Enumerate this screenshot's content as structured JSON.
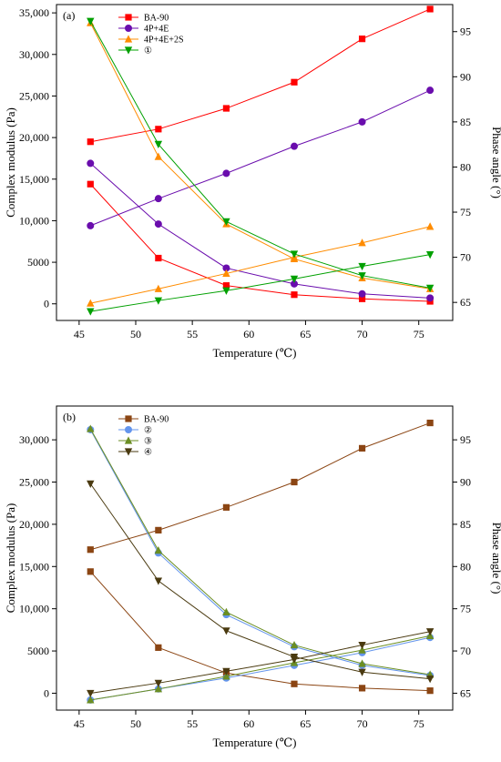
{
  "chart_data": [
    {
      "type": "line",
      "panel_label": "(a)",
      "xlabel": "Temperature (℃)",
      "ylabel": "Complex modulus (Pa)",
      "y2label": "Phase angle (°)",
      "xlim": [
        43,
        78
      ],
      "ylim": [
        -2000,
        36000
      ],
      "y2lim": [
        63,
        98
      ],
      "xticks": [
        "45",
        "50",
        "55",
        "60",
        "65",
        "70",
        "75"
      ],
      "xtick_values": [
        45,
        50,
        55,
        60,
        65,
        70,
        75
      ],
      "yticks": [
        "0",
        "5000",
        "10,000",
        "15,000",
        "20,000",
        "25,000",
        "30,000",
        "35,000"
      ],
      "ytick_values": [
        0,
        5000,
        10000,
        15000,
        20000,
        25000,
        30000,
        35000
      ],
      "y2ticks": [
        "65",
        "70",
        "75",
        "80",
        "85",
        "90",
        "95"
      ],
      "y2tick_values": [
        65,
        70,
        75,
        80,
        85,
        90,
        95
      ],
      "legend_position": "top-left",
      "x": [
        46,
        52,
        58,
        64,
        70,
        76
      ],
      "series": [
        {
          "name": "BA-90",
          "color": "#ff0000",
          "marker": "square",
          "modulus": [
            14400,
            5500,
            2200,
            1100,
            600,
            300
          ],
          "phase_angle": [
            82.8,
            84.2,
            86.5,
            89.4,
            94.2,
            97.5
          ]
        },
        {
          "name": "4P+4E",
          "color": "#6a0dad",
          "marker": "circle",
          "modulus": [
            16900,
            9600,
            4300,
            2400,
            1200,
            700
          ],
          "phase_angle": [
            73.5,
            76.5,
            79.3,
            82.3,
            85.0,
            88.5
          ]
        },
        {
          "name": "4P+4E+2S",
          "color": "#ff8c00",
          "marker": "triangle-up",
          "modulus": [
            33800,
            17700,
            9600,
            5400,
            3100,
            1800
          ],
          "phase_angle": [
            64.9,
            66.5,
            68.2,
            70.0,
            71.6,
            73.4
          ]
        },
        {
          "name": "①",
          "color": "#00a000",
          "marker": "triangle-down",
          "modulus": [
            34000,
            19200,
            9900,
            6000,
            3400,
            1900
          ],
          "phase_angle": [
            64.0,
            65.2,
            66.3,
            67.6,
            69.0,
            70.3
          ]
        }
      ]
    },
    {
      "type": "line",
      "panel_label": "(b)",
      "xlabel": "Temperature (℃)",
      "ylabel": "Complex modulus (Pa)",
      "y2label": "Phase angle (°)",
      "xlim": [
        43,
        78
      ],
      "ylim": [
        -2000,
        34000
      ],
      "y2lim": [
        63,
        99
      ],
      "xticks": [
        "45",
        "50",
        "55",
        "60",
        "65",
        "70",
        "75"
      ],
      "xtick_values": [
        45,
        50,
        55,
        60,
        65,
        70,
        75
      ],
      "yticks": [
        "0",
        "5000",
        "10,000",
        "15,000",
        "20,000",
        "25,000",
        "30,000"
      ],
      "ytick_values": [
        0,
        5000,
        10000,
        15000,
        20000,
        25000,
        30000
      ],
      "y2ticks": [
        "65",
        "70",
        "75",
        "80",
        "85",
        "90",
        "95"
      ],
      "y2tick_values": [
        65,
        70,
        75,
        80,
        85,
        90,
        95
      ],
      "legend_position": "top-left",
      "x": [
        46,
        52,
        58,
        64,
        70,
        76
      ],
      "series": [
        {
          "name": "BA-90",
          "color": "#8b4513",
          "marker": "square",
          "modulus": [
            14400,
            5400,
            2400,
            1100,
            600,
            300
          ],
          "phase_angle": [
            82.0,
            84.3,
            87.0,
            90.0,
            94.0,
            97.0
          ]
        },
        {
          "name": "②",
          "color": "#6495ed",
          "marker": "circle",
          "modulus": [
            31200,
            16600,
            9300,
            5500,
            3300,
            2100
          ],
          "phase_angle": [
            64.2,
            65.5,
            66.8,
            68.3,
            69.8,
            71.6
          ]
        },
        {
          "name": "③",
          "color": "#6b8e23",
          "marker": "triangle-up",
          "modulus": [
            31300,
            16900,
            9600,
            5700,
            3500,
            2200
          ],
          "phase_angle": [
            64.2,
            65.5,
            67.0,
            68.6,
            70.1,
            71.8
          ]
        },
        {
          "name": "④",
          "color": "#4a3a10",
          "marker": "triangle-down",
          "modulus": [
            24800,
            13300,
            7400,
            4300,
            2500,
            1700
          ],
          "phase_angle": [
            65.0,
            66.2,
            67.6,
            69.0,
            70.7,
            72.3
          ]
        }
      ]
    }
  ]
}
